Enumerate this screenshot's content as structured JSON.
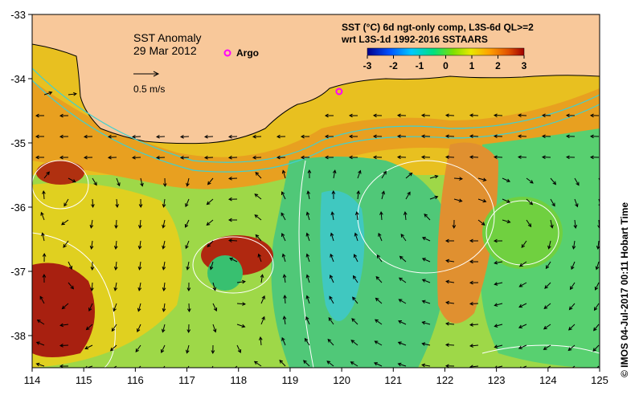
{
  "map": {
    "title": "SST Anomaly",
    "date": "29 Mar 2012",
    "scale_label": "0.5 m/s",
    "argo_label": "Argo",
    "x_ticks": [
      "114",
      "115",
      "116",
      "117",
      "118",
      "119",
      "120",
      "121",
      "122",
      "123",
      "124",
      "125"
    ],
    "y_ticks": [
      "-33",
      "-34",
      "-35",
      "-36",
      "-37",
      "-38"
    ],
    "x_range": [
      114,
      125
    ],
    "y_range": [
      -38.5,
      -33
    ],
    "argo_float": {
      "lon": 119.95,
      "lat": -34.2
    }
  },
  "legend": {
    "line1": "SST (°C) 6d ngt-only comp, L3S-6d QL>=2",
    "line2": "wrt L3S-1d 1992-2016 SSTAARS",
    "ticks": [
      "-3",
      "-2",
      "-1",
      "0",
      "1",
      "2",
      "3"
    ],
    "colors": [
      "#00008b",
      "#0050ff",
      "#00c8ff",
      "#00e080",
      "#80e000",
      "#e8e800",
      "#ffa000",
      "#e05000",
      "#a00000"
    ]
  },
  "credit": "©  IMOS 04-Jul-2017 00:11 Hobart Time",
  "colors": {
    "land": "#f8c89a",
    "argo": "#ff00ff",
    "contour": "#ffffff",
    "ssh_contour": "#40d0d0"
  }
}
